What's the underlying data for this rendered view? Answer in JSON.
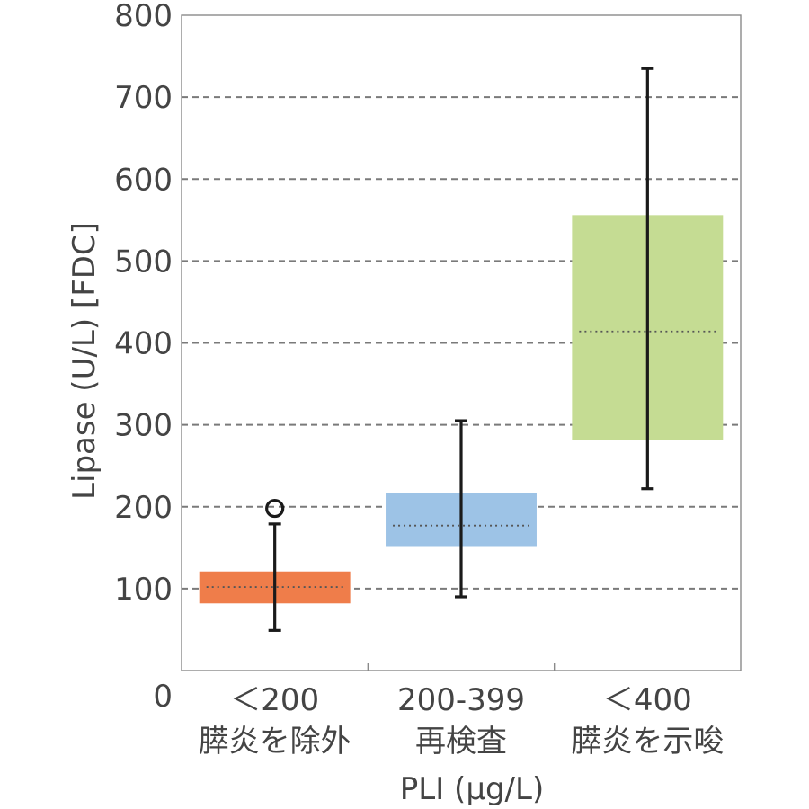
{
  "chart_data": {
    "type": "box",
    "xlabel": "PLI (μg/L)",
    "ylabel": "Lipase (U/L) [FDC]",
    "ylim": [
      0,
      800
    ],
    "yticks": [
      0,
      100,
      200,
      300,
      400,
      500,
      600,
      700,
      800
    ],
    "grid": "horizontal dashed",
    "categories": [
      {
        "line1": "＜200",
        "line2": "膵炎を除外"
      },
      {
        "line1": "200-399",
        "line2": "再検査"
      },
      {
        "line1": "＜400",
        "line2": "膵炎を示唆"
      }
    ],
    "boxes": [
      {
        "q1": 82,
        "q3": 121,
        "median": 102,
        "whisker_low": 49,
        "whisker_high": 179,
        "outliers": [
          198
        ],
        "color": "#ef7d4a"
      },
      {
        "q1": 152,
        "q3": 217,
        "median": 177,
        "whisker_low": 90,
        "whisker_high": 305,
        "outliers": [],
        "color": "#9dc3e6"
      },
      {
        "q1": 281,
        "q3": 556,
        "median": 414,
        "whisker_low": 222,
        "whisker_high": 735,
        "outliers": [],
        "color": "#c5dc93"
      }
    ]
  }
}
